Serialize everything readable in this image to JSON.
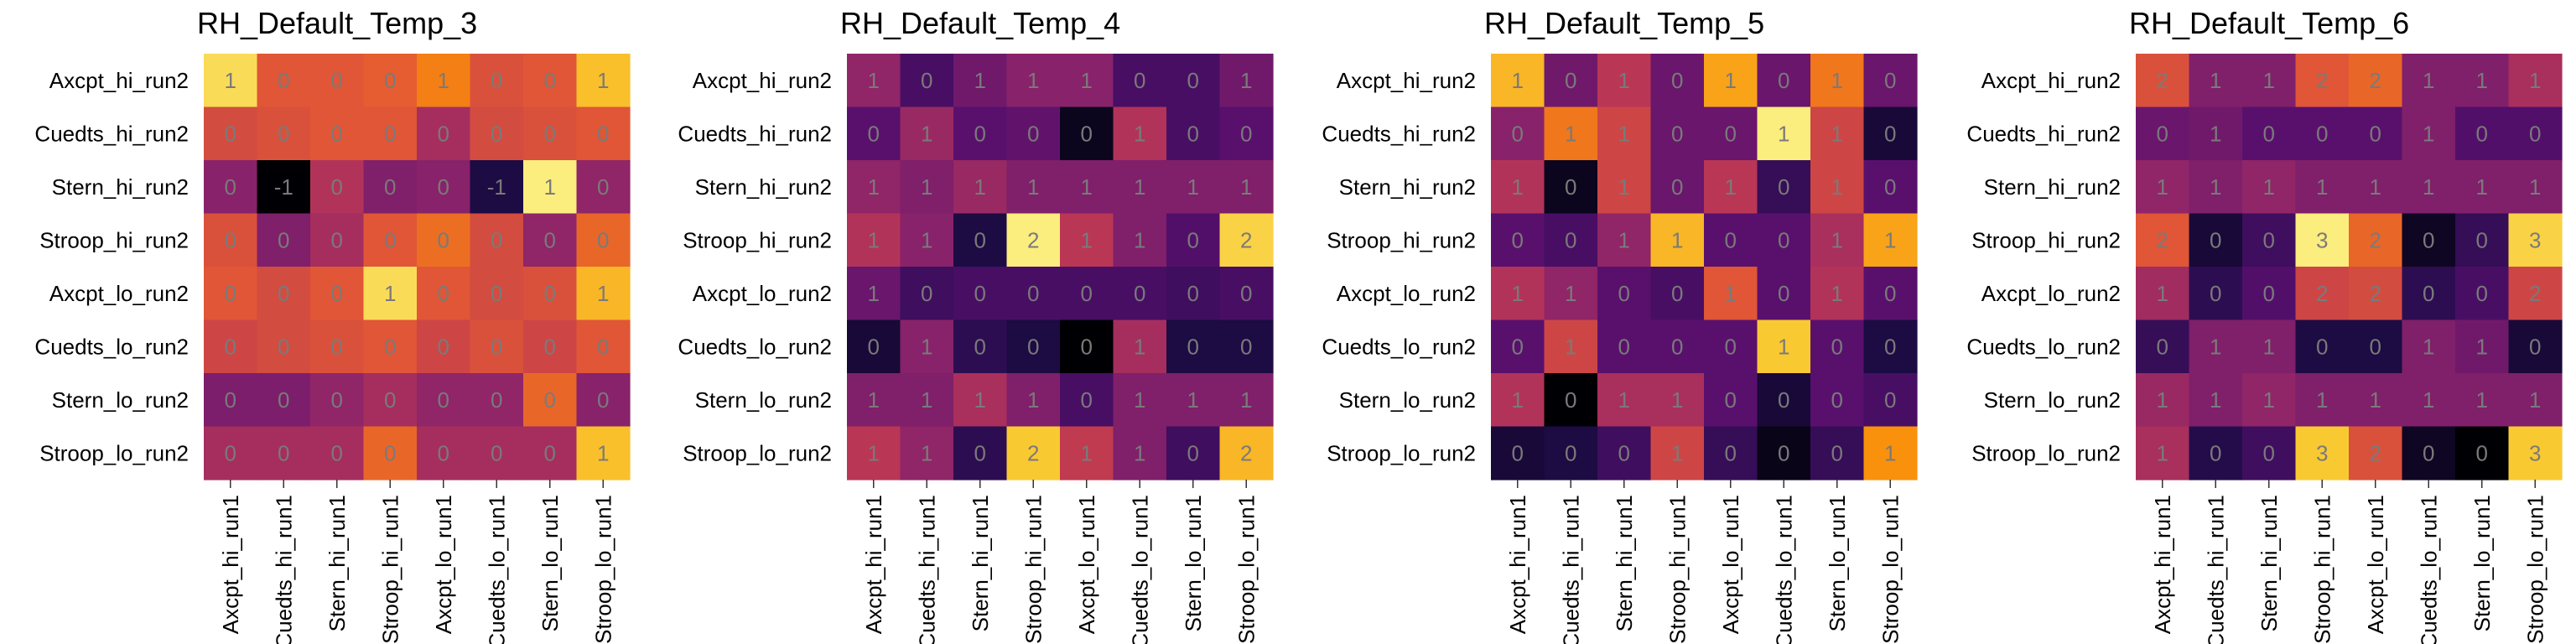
{
  "chart_data": [
    {
      "type": "heatmap",
      "title": "RH_Default_Temp_3",
      "x_categories": [
        "Axcpt_hi_run1",
        "Cuedts_hi_run1",
        "Stern_hi_run1",
        "Stroop_hi_run1",
        "Axcpt_lo_run1",
        "Cuedts_lo_run1",
        "Stern_lo_run1",
        "Stroop_lo_run1"
      ],
      "y_categories": [
        "Axcpt_hi_run2",
        "Cuedts_hi_run2",
        "Stern_hi_run2",
        "Stroop_hi_run2",
        "Axcpt_lo_run2",
        "Cuedts_lo_run2",
        "Stern_lo_run2",
        "Stroop_lo_run2"
      ],
      "display_values": [
        [
          "1",
          "0",
          "0",
          "0",
          "1",
          "0",
          "0",
          "1"
        ],
        [
          "0",
          "0",
          "0",
          "0",
          "0",
          "0",
          "0",
          "0"
        ],
        [
          "0",
          "-1",
          "0",
          "0",
          "0",
          "-1",
          "1",
          "0"
        ],
        [
          "0",
          "0",
          "0",
          "0",
          "0",
          "0",
          "0",
          "0"
        ],
        [
          "0",
          "0",
          "0",
          "1",
          "0",
          "0",
          "0",
          "1"
        ],
        [
          "0",
          "0",
          "0",
          "0",
          "0",
          "0",
          "0",
          "0"
        ],
        [
          "0",
          "0",
          "0",
          "0",
          "0",
          "0",
          "0",
          "0"
        ],
        [
          "0",
          "0",
          "0",
          "0",
          "0",
          "0",
          "0",
          "1"
        ]
      ],
      "intensity": [
        [
          0.92,
          0.62,
          0.62,
          0.64,
          0.72,
          0.6,
          0.62,
          0.86
        ],
        [
          0.58,
          0.6,
          0.62,
          0.62,
          0.45,
          0.58,
          0.6,
          0.62
        ],
        [
          0.38,
          0.0,
          0.48,
          0.36,
          0.38,
          0.12,
          0.96,
          0.4
        ],
        [
          0.6,
          0.36,
          0.45,
          0.62,
          0.68,
          0.58,
          0.4,
          0.66
        ],
        [
          0.62,
          0.58,
          0.62,
          0.92,
          0.62,
          0.58,
          0.6,
          0.84
        ],
        [
          0.56,
          0.58,
          0.6,
          0.62,
          0.56,
          0.6,
          0.56,
          0.62
        ],
        [
          0.35,
          0.35,
          0.4,
          0.45,
          0.4,
          0.4,
          0.66,
          0.38
        ],
        [
          0.45,
          0.45,
          0.45,
          0.66,
          0.45,
          0.45,
          0.45,
          0.86
        ]
      ]
    },
    {
      "type": "heatmap",
      "title": "RH_Default_Temp_4",
      "x_categories": [
        "Axcpt_hi_run1",
        "Cuedts_hi_run1",
        "Stern_hi_run1",
        "Stroop_hi_run1",
        "Axcpt_lo_run1",
        "Cuedts_lo_run1",
        "Stern_lo_run1",
        "Stroop_lo_run1"
      ],
      "y_categories": [
        "Axcpt_hi_run2",
        "Cuedts_hi_run2",
        "Stern_hi_run2",
        "Stroop_hi_run2",
        "Axcpt_lo_run2",
        "Cuedts_lo_run2",
        "Stern_lo_run2",
        "Stroop_lo_run2"
      ],
      "display_values": [
        [
          "1",
          "0",
          "1",
          "1",
          "1",
          "0",
          "0",
          "1"
        ],
        [
          "0",
          "1",
          "0",
          "0",
          "0",
          "1",
          "0",
          "0"
        ],
        [
          "1",
          "1",
          "1",
          "1",
          "1",
          "1",
          "1",
          "1"
        ],
        [
          "1",
          "1",
          "0",
          "2",
          "1",
          "1",
          "0",
          "2"
        ],
        [
          "1",
          "0",
          "0",
          "0",
          "0",
          "0",
          "0",
          "0"
        ],
        [
          "0",
          "1",
          "0",
          "0",
          "0",
          "1",
          "0",
          "0"
        ],
        [
          "1",
          "1",
          "1",
          "1",
          "0",
          "1",
          "1",
          "1"
        ],
        [
          "1",
          "1",
          "0",
          "2",
          "1",
          "1",
          "0",
          "2"
        ]
      ],
      "intensity": [
        [
          0.4,
          0.22,
          0.32,
          0.38,
          0.38,
          0.22,
          0.22,
          0.32
        ],
        [
          0.26,
          0.42,
          0.26,
          0.28,
          0.05,
          0.48,
          0.22,
          0.26
        ],
        [
          0.4,
          0.36,
          0.42,
          0.36,
          0.36,
          0.36,
          0.36,
          0.36
        ],
        [
          0.48,
          0.38,
          0.12,
          0.96,
          0.5,
          0.36,
          0.24,
          0.9
        ],
        [
          0.3,
          0.2,
          0.22,
          0.22,
          0.22,
          0.22,
          0.2,
          0.22
        ],
        [
          0.1,
          0.38,
          0.16,
          0.12,
          0.0,
          0.45,
          0.12,
          0.12
        ],
        [
          0.36,
          0.36,
          0.46,
          0.36,
          0.22,
          0.36,
          0.36,
          0.36
        ],
        [
          0.5,
          0.4,
          0.16,
          0.88,
          0.52,
          0.36,
          0.2,
          0.84
        ]
      ]
    },
    {
      "type": "heatmap",
      "title": "RH_Default_Temp_5",
      "x_categories": [
        "Axcpt_hi_run1",
        "Cuedts_hi_run1",
        "Stern_hi_run1",
        "Stroop_hi_run1",
        "Axcpt_lo_run1",
        "Cuedts_lo_run1",
        "Stern_lo_run1",
        "Stroop_lo_run1"
      ],
      "y_categories": [
        "Axcpt_hi_run2",
        "Cuedts_hi_run2",
        "Stern_hi_run2",
        "Stroop_hi_run2",
        "Axcpt_lo_run2",
        "Cuedts_lo_run2",
        "Stern_lo_run2",
        "Stroop_lo_run2"
      ],
      "display_values": [
        [
          "1",
          "0",
          "1",
          "0",
          "1",
          "0",
          "1",
          "0"
        ],
        [
          "0",
          "1",
          "1",
          "0",
          "0",
          "1",
          "1",
          "0"
        ],
        [
          "1",
          "0",
          "1",
          "0",
          "1",
          "0",
          "1",
          "0"
        ],
        [
          "0",
          "0",
          "1",
          "1",
          "0",
          "0",
          "1",
          "1"
        ],
        [
          "1",
          "1",
          "0",
          "0",
          "1",
          "0",
          "1",
          "0"
        ],
        [
          "0",
          "1",
          "0",
          "0",
          "0",
          "1",
          "0",
          "0"
        ],
        [
          "1",
          "0",
          "1",
          "1",
          "0",
          "0",
          "0",
          "0"
        ],
        [
          "0",
          "0",
          "0",
          "1",
          "0",
          "0",
          "0",
          "1"
        ]
      ],
      "intensity": [
        [
          0.84,
          0.32,
          0.5,
          0.3,
          0.8,
          0.3,
          0.7,
          0.3
        ],
        [
          0.38,
          0.7,
          0.56,
          0.3,
          0.3,
          0.96,
          0.56,
          0.1
        ],
        [
          0.48,
          0.05,
          0.56,
          0.3,
          0.5,
          0.18,
          0.56,
          0.26
        ],
        [
          0.26,
          0.22,
          0.4,
          0.84,
          0.26,
          0.26,
          0.46,
          0.8
        ],
        [
          0.48,
          0.4,
          0.26,
          0.22,
          0.62,
          0.26,
          0.48,
          0.26
        ],
        [
          0.26,
          0.56,
          0.26,
          0.26,
          0.26,
          0.88,
          0.26,
          0.12
        ],
        [
          0.48,
          0.0,
          0.46,
          0.46,
          0.26,
          0.1,
          0.26,
          0.22
        ],
        [
          0.1,
          0.12,
          0.2,
          0.56,
          0.18,
          0.04,
          0.18,
          0.76
        ]
      ]
    },
    {
      "type": "heatmap",
      "title": "RH_Default_Temp_6",
      "x_categories": [
        "Axcpt_hi_run1",
        "Cuedts_hi_run1",
        "Stern_hi_run1",
        "Stroop_hi_run1",
        "Axcpt_lo_run1",
        "Cuedts_lo_run1",
        "Stern_lo_run1",
        "Stroop_lo_run1"
      ],
      "y_categories": [
        "Axcpt_hi_run2",
        "Cuedts_hi_run2",
        "Stern_hi_run2",
        "Stroop_hi_run2",
        "Axcpt_lo_run2",
        "Cuedts_lo_run2",
        "Stern_lo_run2",
        "Stroop_lo_run2"
      ],
      "display_values": [
        [
          "2",
          "1",
          "1",
          "2",
          "2",
          "1",
          "1",
          "1"
        ],
        [
          "0",
          "1",
          "0",
          "0",
          "0",
          "1",
          "0",
          "0"
        ],
        [
          "1",
          "1",
          "1",
          "1",
          "1",
          "1",
          "1",
          "1"
        ],
        [
          "2",
          "0",
          "0",
          "3",
          "2",
          "0",
          "0",
          "3"
        ],
        [
          "1",
          "0",
          "0",
          "2",
          "2",
          "0",
          "0",
          "2"
        ],
        [
          "0",
          "1",
          "1",
          "0",
          "0",
          "1",
          "1",
          "0"
        ],
        [
          "1",
          "1",
          "1",
          "1",
          "1",
          "1",
          "1",
          "1"
        ],
        [
          "1",
          "0",
          "0",
          "3",
          "2",
          "0",
          "0",
          "3"
        ]
      ],
      "intensity": [
        [
          0.6,
          0.36,
          0.36,
          0.62,
          0.66,
          0.36,
          0.36,
          0.46
        ],
        [
          0.3,
          0.32,
          0.26,
          0.26,
          0.26,
          0.36,
          0.24,
          0.24
        ],
        [
          0.4,
          0.36,
          0.4,
          0.36,
          0.36,
          0.36,
          0.36,
          0.36
        ],
        [
          0.62,
          0.1,
          0.2,
          0.96,
          0.66,
          0.06,
          0.18,
          0.9
        ],
        [
          0.44,
          0.16,
          0.24,
          0.56,
          0.58,
          0.16,
          0.22,
          0.56
        ],
        [
          0.18,
          0.36,
          0.36,
          0.12,
          0.12,
          0.36,
          0.32,
          0.1
        ],
        [
          0.42,
          0.36,
          0.4,
          0.36,
          0.36,
          0.36,
          0.36,
          0.36
        ],
        [
          0.46,
          0.14,
          0.2,
          0.88,
          0.6,
          0.06,
          0.0,
          0.88
        ]
      ]
    }
  ]
}
